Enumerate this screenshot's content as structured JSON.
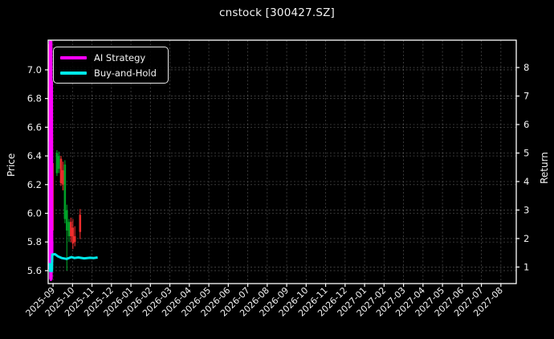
{
  "title": "cnstock [300427.SZ]",
  "legend": {
    "items": [
      {
        "label": "AI Strategy",
        "color": "#ff00ff"
      },
      {
        "label": "Buy-and-Hold",
        "color": "#00e8e8"
      }
    ]
  },
  "axes": {
    "left": {
      "label": "Price",
      "ticks": [
        5.6,
        5.8,
        6.0,
        6.2,
        6.4,
        6.6,
        6.8,
        7.0
      ],
      "range": [
        5.51,
        7.207
      ]
    },
    "right": {
      "label": "Return",
      "ticks": [
        1,
        2,
        3,
        4,
        5,
        6,
        7,
        8
      ],
      "range": [
        0.42,
        8.96
      ]
    },
    "x": {
      "tick_labels": [
        "2025-09",
        "2025-10",
        "2025-11",
        "2025-12",
        "2026-01",
        "2026-02",
        "2026-03",
        "2026-04",
        "2026-05",
        "2026-06",
        "2026-07",
        "2026-08",
        "2026-09",
        "2026-10",
        "2026-11",
        "2026-12",
        "2027-01",
        "2027-02",
        "2027-03",
        "2027-04",
        "2027-05",
        "2027-06",
        "2027-07",
        "2027-08"
      ],
      "range_month_index": [
        -0.25,
        23.79
      ],
      "grid": true
    }
  },
  "chart_data": {
    "type": "candlestick+line",
    "title": "cnstock [300427.SZ]",
    "xlabel": "",
    "ylabel_left": "Price",
    "ylabel_right": "Return",
    "grid": "dashed",
    "legend_position": "upper-left",
    "candle_colors": {
      "up": "#00a028",
      "down": "#ee2c2c"
    },
    "candles_note": "x is fractional month index, 0 = 2025-09 tick; values [x, open, high, low, close]",
    "candles": [
      [
        -0.22,
        6.88,
        7.18,
        6.5,
        6.58
      ],
      [
        -0.12,
        6.58,
        7.02,
        5.8,
        5.92
      ],
      [
        -0.02,
        6.35,
        6.55,
        5.78,
        5.88
      ],
      [
        0.2,
        6.28,
        6.44,
        6.26,
        6.42
      ],
      [
        0.3,
        6.31,
        6.43,
        6.28,
        6.4
      ],
      [
        0.41,
        6.38,
        6.4,
        6.19,
        6.21
      ],
      [
        0.51,
        6.3,
        6.36,
        6.16,
        6.2
      ],
      [
        0.61,
        5.96,
        6.37,
        5.93,
        6.34
      ],
      [
        0.71,
        5.88,
        6.06,
        5.6,
        6.02
      ],
      [
        0.82,
        5.84,
        5.96,
        5.8,
        5.94
      ],
      [
        0.92,
        5.94,
        5.97,
        5.8,
        5.84
      ],
      [
        1.02,
        5.9,
        5.96,
        5.75,
        5.79
      ],
      [
        1.12,
        5.84,
        5.91,
        5.77,
        5.8
      ],
      [
        1.39,
        5.99,
        6.03,
        5.82,
        5.87
      ]
    ],
    "series": [
      {
        "name": "AI Strategy",
        "axis": "return",
        "color": "#ff00ff",
        "width": 3,
        "points": [
          [
            -0.17,
            0.92
          ],
          [
            -0.155,
            8.9
          ],
          [
            -0.14,
            0.6
          ],
          [
            -0.125,
            8.93
          ],
          [
            -0.11,
            0.55
          ],
          [
            -0.095,
            8.9
          ],
          [
            -0.08,
            0.6
          ],
          [
            -0.065,
            7.5
          ],
          [
            -0.05,
            1.2
          ],
          [
            -0.04,
            1.9
          ]
        ]
      },
      {
        "name": "Buy-and-Hold",
        "axis": "price",
        "color": "#00e8e8",
        "width": 3,
        "points": [
          [
            -0.25,
            5.645
          ],
          [
            -0.16,
            5.645
          ],
          [
            -0.15,
            5.598
          ],
          [
            -0.06,
            5.598
          ],
          [
            -0.04,
            5.712
          ],
          [
            0.1,
            5.715
          ],
          [
            0.25,
            5.7
          ],
          [
            0.45,
            5.688
          ],
          [
            0.7,
            5.682
          ],
          [
            0.95,
            5.695
          ],
          [
            1.1,
            5.688
          ],
          [
            1.3,
            5.692
          ],
          [
            1.6,
            5.686
          ],
          [
            1.9,
            5.69
          ],
          [
            2.1,
            5.688
          ],
          [
            2.29,
            5.692
          ]
        ]
      }
    ]
  }
}
